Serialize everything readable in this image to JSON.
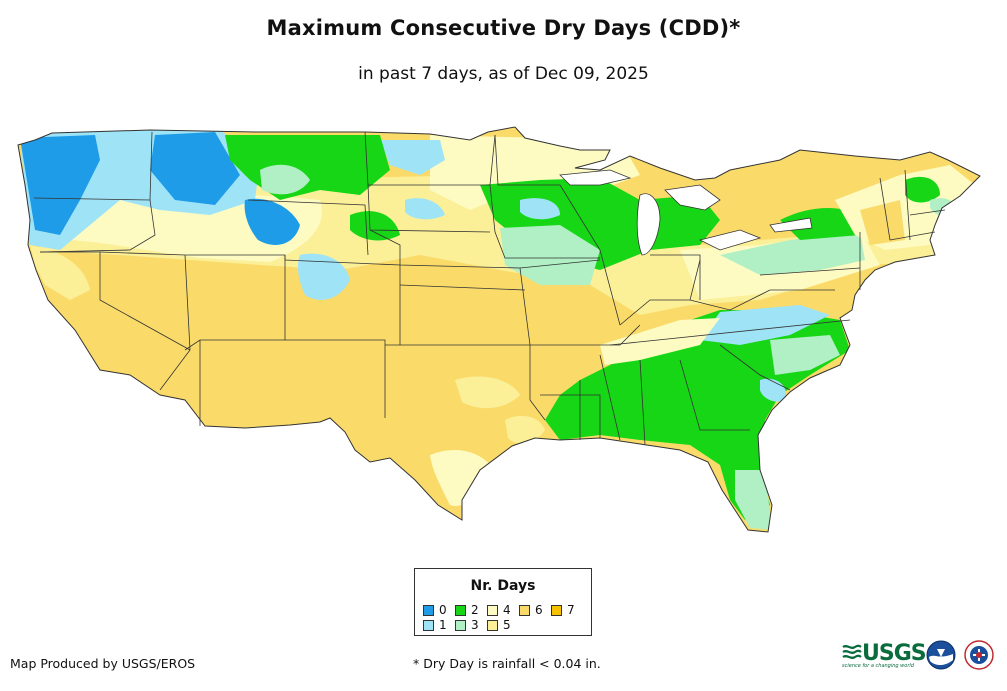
{
  "header": {
    "title": "Maximum Consecutive Dry Days (CDD)*",
    "subtitle": "in past 7 days, as of Dec 09, 2025"
  },
  "legend": {
    "title": "Nr. Days",
    "items": [
      {
        "label": "0",
        "color": "#1e9ce8"
      },
      {
        "label": "1",
        "color": "#9fe3f7"
      },
      {
        "label": "2",
        "color": "#16d616"
      },
      {
        "label": "3",
        "color": "#b0f0c4"
      },
      {
        "label": "4",
        "color": "#fdfbc2"
      },
      {
        "label": "5",
        "color": "#fbef98"
      },
      {
        "label": "6",
        "color": "#fadb6a"
      },
      {
        "label": "7",
        "color": "#f6c200"
      }
    ]
  },
  "footer": {
    "credit": "Map Produced by USGS/EROS",
    "footnote": "* Dry Day is rainfall < 0.04 in.",
    "usgs_logo_text": "USGS",
    "usgs_tagline": "science for a changing world"
  },
  "icons": {
    "usgs_logo": "usgs-logo-icon",
    "noaa_logo": "noaa-logo-icon",
    "nws_logo": "nws-logo-icon"
  }
}
